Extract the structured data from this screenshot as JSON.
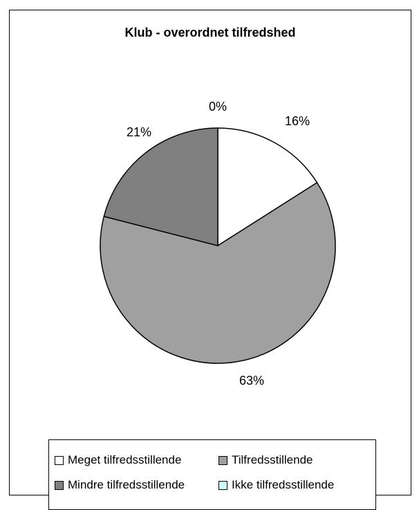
{
  "chart_data": {
    "type": "pie",
    "title": "Klub - overordnet tilfredshed",
    "categories": [
      "Meget tilfredsstillende",
      "Tilfredsstillende",
      "Mindre tilfredsstillende",
      "Ikke tilfredsstillende"
    ],
    "values": [
      16,
      63,
      21,
      0
    ],
    "labels": [
      "16%",
      "63%",
      "21%",
      "0%"
    ],
    "colors": [
      "#ffffff",
      "#a0a0a0",
      "#808080",
      "#ccffff"
    ],
    "legend_position": "bottom"
  },
  "legend": {
    "items": [
      {
        "label": "Meget tilfredsstillende",
        "color": "#ffffff"
      },
      {
        "label": "Tilfredsstillende",
        "color": "#a0a0a0"
      },
      {
        "label": "Mindre tilfredsstillende",
        "color": "#808080"
      },
      {
        "label": "Ikke tilfredsstillende",
        "color": "#ccffff"
      }
    ]
  }
}
